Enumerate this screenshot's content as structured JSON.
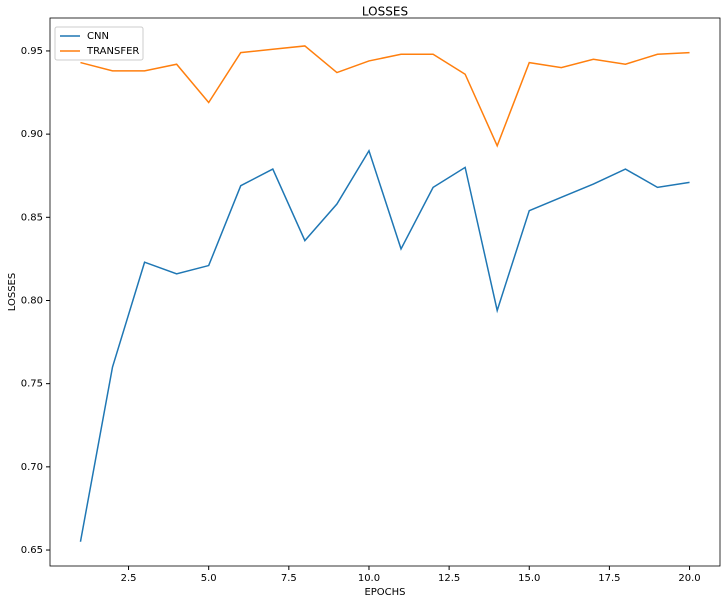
{
  "chart_data": {
    "type": "line",
    "title": "LOSSES",
    "x_label": "EPOCHS",
    "y_label": "LOSSES",
    "x": [
      1,
      2,
      3,
      4,
      5,
      6,
      7,
      8,
      9,
      10,
      11,
      12,
      13,
      14,
      15,
      16,
      17,
      18,
      19,
      20
    ],
    "series": [
      {
        "name": "CNN",
        "color": "#1f77b4",
        "values": [
          0.655,
          0.76,
          0.823,
          0.816,
          0.821,
          0.869,
          0.879,
          0.836,
          0.858,
          0.89,
          0.831,
          0.868,
          0.88,
          0.794,
          0.854,
          0.862,
          0.87,
          0.879,
          0.868,
          0.871
        ]
      },
      {
        "name": "TRANSFER",
        "color": "#ff7f0e",
        "values": [
          0.943,
          0.938,
          0.938,
          0.942,
          0.919,
          0.949,
          0.951,
          0.953,
          0.937,
          0.944,
          0.948,
          0.948,
          0.936,
          0.893,
          0.943,
          0.94,
          0.945,
          0.942,
          0.948,
          0.949
        ]
      }
    ],
    "xlim": [
      0.05,
      20.95
    ],
    "xticks": [
      2.5,
      {
        "value": 5,
        "label": "5.0"
      },
      7.5,
      {
        "value": 10,
        "label": "10.0"
      },
      12.5,
      {
        "value": 15,
        "label": "15.0"
      },
      17.5,
      {
        "value": 20,
        "label": "20.0"
      }
    ],
    "ylim": [
      0.6404,
      0.9698
    ],
    "yticks": [
      0.65,
      {
        "value": 0.7,
        "label": "0.70"
      },
      0.75,
      {
        "value": 0.8,
        "label": "0.80"
      },
      0.85,
      {
        "value": 0.9,
        "label": "0.90"
      },
      0.95
    ],
    "grid": false,
    "legend": "upper-left"
  }
}
